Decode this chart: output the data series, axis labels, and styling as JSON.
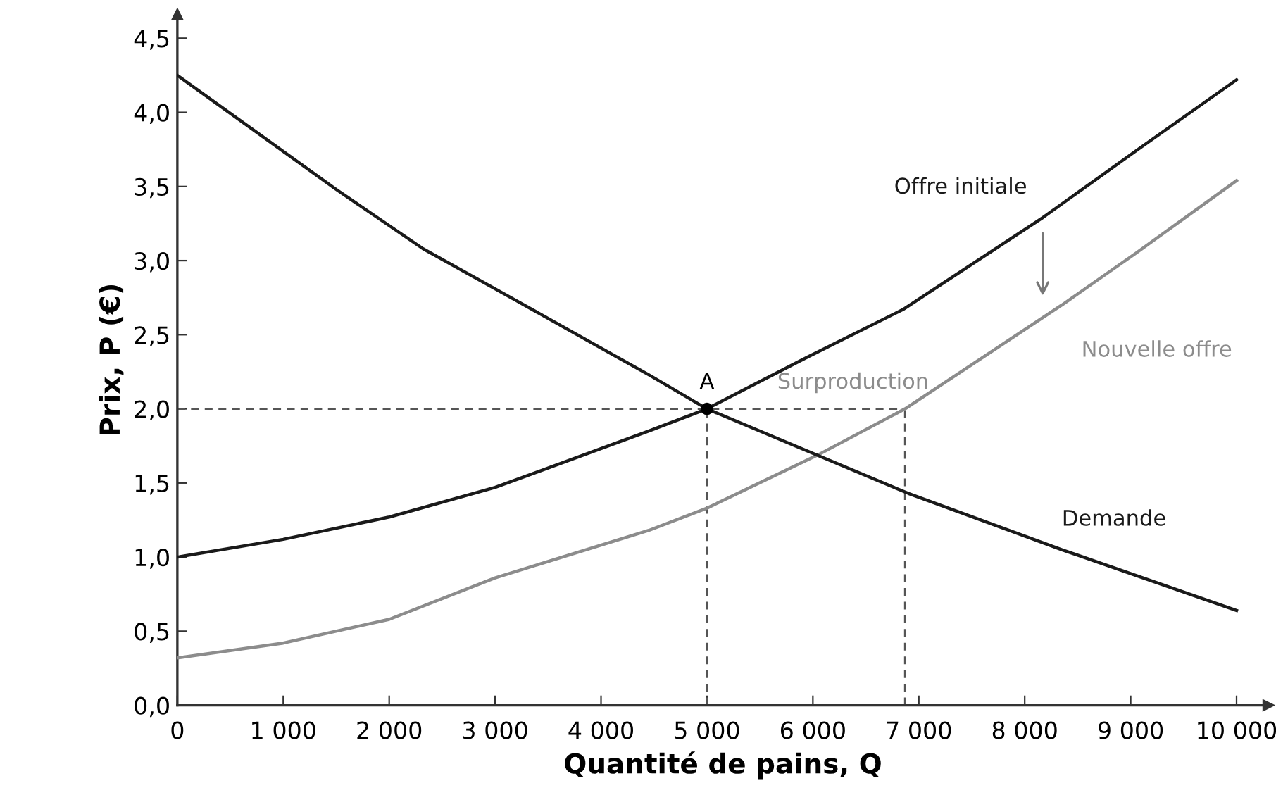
{
  "chart_data": {
    "type": "line",
    "xlabel": "Quantité de pains, Q",
    "ylabel": "Prix, P (€)",
    "xlim": [
      0,
      10300
    ],
    "ylim": [
      0,
      4.66
    ],
    "xticks": [
      0,
      {
        "value": 1000,
        "label": "1 000"
      },
      {
        "value": 2000,
        "label": "2 000"
      },
      {
        "value": 3000,
        "label": "3 000"
      },
      {
        "value": 4000,
        "label": "4 000"
      },
      {
        "value": 5000,
        "label": "5 000"
      },
      {
        "value": 6000,
        "label": "6 000"
      },
      {
        "value": 7000,
        "label": "7 000"
      },
      {
        "value": 8000,
        "label": "8 000"
      },
      {
        "value": 9000,
        "label": "9 000"
      },
      {
        "value": 10000,
        "label": "10 000"
      }
    ],
    "yticks": [
      {
        "value": 0,
        "label": "0,0"
      },
      {
        "value": 0.5,
        "label": "0,5"
      },
      {
        "value": 1,
        "label": "1,0"
      },
      {
        "value": 1.5,
        "label": "1,5"
      },
      {
        "value": 2,
        "label": "2,0"
      },
      {
        "value": 2.5,
        "label": "2,5"
      },
      {
        "value": 3,
        "label": "3,0"
      },
      {
        "value": 3.5,
        "label": "3,5"
      },
      {
        "value": 4,
        "label": "4,0"
      },
      {
        "value": 4.5,
        "label": "4,5"
      }
    ],
    "grid": false,
    "legend": false,
    "series": [
      {
        "name": "Offre initiale",
        "color": "#1a1a1a",
        "x": [
          0,
          1000,
          2000,
          3000,
          4450,
          5000,
          5950,
          6850,
          8170,
          9050,
          10000
        ],
        "values": [
          1.0,
          1.12,
          1.27,
          1.47,
          1.85,
          2.0,
          2.35,
          2.67,
          3.29,
          3.74,
          4.22
        ]
      },
      {
        "name": "Nouvelle offre",
        "color": "#8c8c8c",
        "x": [
          0,
          1000,
          2000,
          3000,
          4450,
          5000,
          6050,
          6870,
          8350,
          9050,
          10000
        ],
        "values": [
          0.32,
          0.42,
          0.58,
          0.86,
          1.18,
          1.33,
          1.69,
          2.0,
          2.7,
          3.05,
          3.54
        ]
      },
      {
        "name": "Demande",
        "color": "#1a1a1a",
        "x": [
          0,
          1500,
          2320,
          3200,
          4450,
          5000,
          6000,
          6900,
          8350,
          10000
        ],
        "values": [
          4.25,
          3.48,
          3.08,
          2.73,
          2.23,
          2.0,
          1.7,
          1.43,
          1.05,
          0.64
        ]
      },
      {
        "color": "#555555",
        "line_style": "dashed",
        "x": [
          0,
          6870
        ],
        "values": [
          2.0,
          2.0
        ]
      },
      {
        "color": "#555555",
        "line_style": "dashed",
        "x": [
          5000,
          5000
        ],
        "values": [
          0,
          2.0
        ]
      },
      {
        "color": "#555555",
        "line_style": "dashed",
        "x": [
          6870,
          6870
        ],
        "values": [
          0,
          2.0
        ]
      },
      {
        "type": "scatter",
        "color": "#000000",
        "marker": "circle",
        "x": [
          5000
        ],
        "values": [
          2.0
        ]
      }
    ],
    "annotations": [
      {
        "text": "A",
        "x": 5000,
        "y": 2.0
      },
      {
        "text": "Surproduction",
        "x": 6380,
        "y": 2.0
      }
    ]
  }
}
